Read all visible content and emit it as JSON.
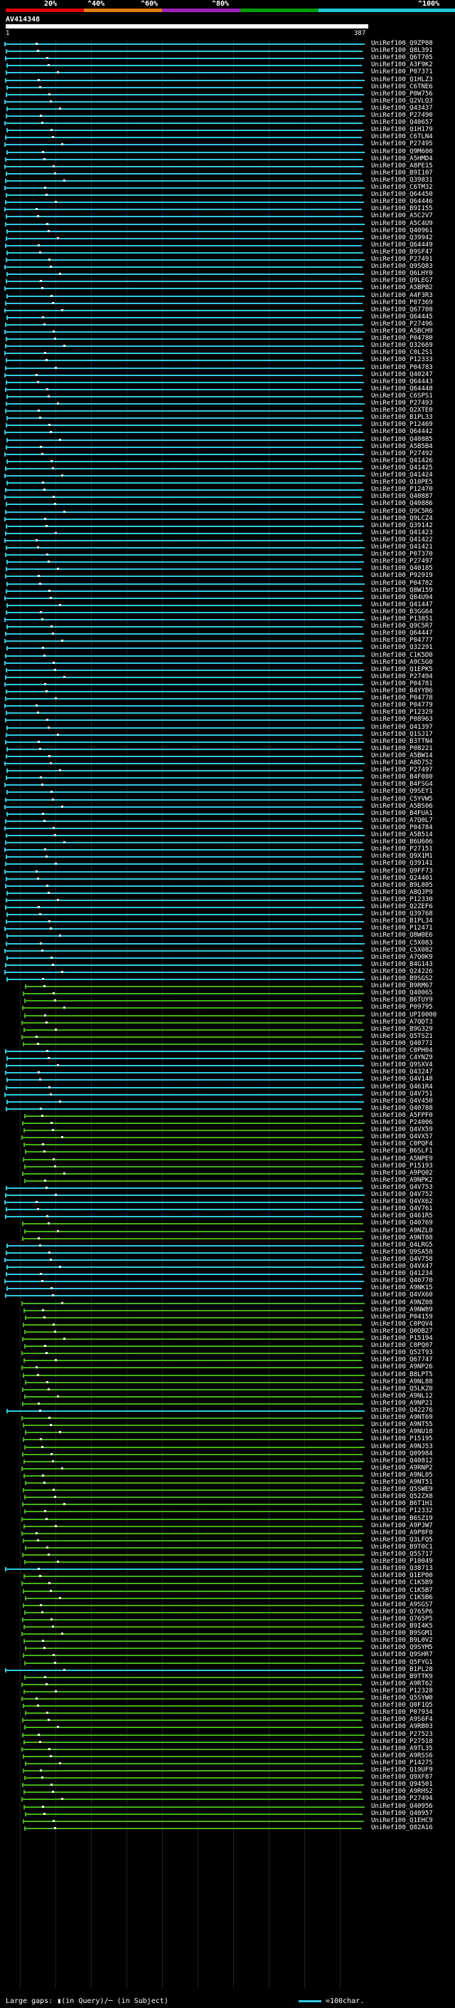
{
  "query": {
    "name": "AV414348",
    "start": "1",
    "end": "387"
  },
  "scale": {
    "ticks": [
      "20%",
      "^40%",
      "^60%",
      "^80%",
      "^100%"
    ],
    "colors": [
      "#e00000",
      "#e07a10",
      "#a020c0",
      "#00a000",
      "#20c8d8"
    ]
  },
  "legend": {
    "gaps_text": "Large gaps: ▮(in Query)/─ (in Subject)",
    "scale_text": "=100char."
  },
  "colors": {
    "cyan": "#32c8e0",
    "green": "#46b018",
    "white": "#ffffff"
  },
  "hits": [
    {
      "id": "UniRef100_Q9ZP08",
      "c": "cyan"
    },
    {
      "id": "UniRef100_Q8L391",
      "c": "cyan"
    },
    {
      "id": "UniRef100_Q6T705",
      "c": "cyan"
    },
    {
      "id": "UniRef100_A3F9K2",
      "c": "cyan"
    },
    {
      "id": "UniRef100_P07371",
      "c": "cyan"
    },
    {
      "id": "UniRef100_Q1HLZ3",
      "c": "cyan"
    },
    {
      "id": "UniRef100_C6TNE6",
      "c": "cyan"
    },
    {
      "id": "UniRef100_P0W756",
      "c": "cyan"
    },
    {
      "id": "UniRef100_Q2VLQ3",
      "c": "cyan"
    },
    {
      "id": "UniRef100_Q43437",
      "c": "cyan"
    },
    {
      "id": "UniRef100_P27490",
      "c": "cyan"
    },
    {
      "id": "UniRef100_Q40657",
      "c": "cyan"
    },
    {
      "id": "UniRef100_Q1H179",
      "c": "cyan"
    },
    {
      "id": "UniRef100_C6TLN4",
      "c": "cyan"
    },
    {
      "id": "UniRef100_P27495",
      "c": "cyan"
    },
    {
      "id": "UniRef100_Q9M600",
      "c": "cyan"
    },
    {
      "id": "UniRef100_A5HMD4",
      "c": "cyan"
    },
    {
      "id": "UniRef100_A8PE15",
      "c": "cyan"
    },
    {
      "id": "UniRef100_B9I107",
      "c": "cyan"
    },
    {
      "id": "UniRef100_Q39831",
      "c": "cyan"
    },
    {
      "id": "UniRef100_C6TM32",
      "c": "cyan"
    },
    {
      "id": "UniRef100_Q64450",
      "c": "cyan"
    },
    {
      "id": "UniRef100_Q64446",
      "c": "cyan"
    },
    {
      "id": "UniRef100_B9I155",
      "c": "cyan"
    },
    {
      "id": "UniRef100_A5C2V7",
      "c": "cyan"
    },
    {
      "id": "UniRef100_A5C4U9",
      "c": "cyan"
    },
    {
      "id": "UniRef100_Q40961",
      "c": "cyan"
    },
    {
      "id": "UniRef100_Q39942",
      "c": "cyan"
    },
    {
      "id": "UniRef100_Q64449",
      "c": "cyan"
    },
    {
      "id": "UniRef100_B9SF47",
      "c": "cyan"
    },
    {
      "id": "UniRef100_P27491",
      "c": "cyan"
    },
    {
      "id": "UniRef100_Q9SQ83",
      "c": "cyan"
    },
    {
      "id": "UniRef100_Q6LHY0",
      "c": "cyan"
    },
    {
      "id": "UniRef100_Q9LEG7",
      "c": "cyan"
    },
    {
      "id": "UniRef100_A5BPB2",
      "c": "cyan"
    },
    {
      "id": "UniRef100_A4F3R3",
      "c": "cyan"
    },
    {
      "id": "UniRef100_P07369",
      "c": "cyan"
    },
    {
      "id": "UniRef100_Q67708",
      "c": "cyan"
    },
    {
      "id": "UniRef100_Q64445",
      "c": "cyan"
    },
    {
      "id": "UniRef100_P27496",
      "c": "cyan"
    },
    {
      "id": "UniRef100_A5BCH9",
      "c": "cyan"
    },
    {
      "id": "UniRef100_P04780",
      "c": "cyan"
    },
    {
      "id": "UniRef100_Q32669",
      "c": "cyan"
    },
    {
      "id": "UniRef100_C0L2S1",
      "c": "cyan"
    },
    {
      "id": "UniRef100_P12333",
      "c": "cyan"
    },
    {
      "id": "UniRef100_P04783",
      "c": "cyan"
    },
    {
      "id": "UniRef100_Q40247",
      "c": "cyan"
    },
    {
      "id": "UniRef100_Q64443",
      "c": "cyan"
    },
    {
      "id": "UniRef100_Q64448",
      "c": "cyan"
    },
    {
      "id": "UniRef100_C6SPS1",
      "c": "cyan"
    },
    {
      "id": "UniRef100_P27493",
      "c": "cyan"
    },
    {
      "id": "UniRef100_Q2XTE0",
      "c": "cyan"
    },
    {
      "id": "UniRef100_B1PL33",
      "c": "cyan"
    },
    {
      "id": "UniRef100_P12469",
      "c": "cyan"
    },
    {
      "id": "UniRef100_Q64442",
      "c": "cyan"
    },
    {
      "id": "UniRef100_Q40885",
      "c": "cyan"
    },
    {
      "id": "UniRef100_A5B5B4",
      "c": "cyan"
    },
    {
      "id": "UniRef100_P27492",
      "c": "cyan"
    },
    {
      "id": "UniRef100_Q41426",
      "c": "cyan"
    },
    {
      "id": "UniRef100_Q41425",
      "c": "cyan"
    },
    {
      "id": "UniRef100_Q41424",
      "c": "cyan"
    },
    {
      "id": "UniRef100_Q10PE5",
      "c": "cyan"
    },
    {
      "id": "UniRef100_P12470",
      "c": "cyan"
    },
    {
      "id": "UniRef100_Q40887",
      "c": "cyan"
    },
    {
      "id": "UniRef100_Q40886",
      "c": "cyan"
    },
    {
      "id": "UniRef100_Q9C5R6",
      "c": "cyan"
    },
    {
      "id": "UniRef100_Q9LCZ4",
      "c": "cyan"
    },
    {
      "id": "UniRef100_Q39142",
      "c": "cyan"
    },
    {
      "id": "UniRef100_Q41423",
      "c": "cyan"
    },
    {
      "id": "UniRef100_Q41422",
      "c": "cyan"
    },
    {
      "id": "UniRef100_Q41421",
      "c": "cyan"
    },
    {
      "id": "UniRef100_P07370",
      "c": "cyan"
    },
    {
      "id": "UniRef100_P27497",
      "c": "cyan"
    },
    {
      "id": "UniRef100_Q40185",
      "c": "cyan"
    },
    {
      "id": "UniRef100_P92919",
      "c": "cyan"
    },
    {
      "id": "UniRef100_P04782",
      "c": "cyan"
    },
    {
      "id": "UniRef100_Q8W159",
      "c": "cyan"
    },
    {
      "id": "UniRef100_Q84U94",
      "c": "cyan"
    },
    {
      "id": "UniRef100_Q41447",
      "c": "cyan"
    },
    {
      "id": "UniRef100_B3GG64",
      "c": "cyan"
    },
    {
      "id": "UniRef100_P13851",
      "c": "cyan"
    },
    {
      "id": "UniRef100_Q9C5R7",
      "c": "cyan"
    },
    {
      "id": "UniRef100_Q64447",
      "c": "cyan"
    },
    {
      "id": "UniRef100_P04777",
      "c": "cyan"
    },
    {
      "id": "UniRef100_Q32291",
      "c": "cyan"
    },
    {
      "id": "UniRef100_C1K5D0",
      "c": "cyan"
    },
    {
      "id": "UniRef100_A9CSG0",
      "c": "cyan"
    },
    {
      "id": "UniRef100_Q1EPK5",
      "c": "cyan"
    },
    {
      "id": "UniRef100_P27494",
      "c": "cyan"
    },
    {
      "id": "UniRef100_P04781",
      "c": "cyan"
    },
    {
      "id": "UniRef100_B4YYB6",
      "c": "cyan"
    },
    {
      "id": "UniRef100_P04778",
      "c": "cyan"
    },
    {
      "id": "UniRef100_P04779",
      "c": "cyan"
    },
    {
      "id": "UniRef100_P12329",
      "c": "cyan"
    },
    {
      "id": "UniRef100_P08963",
      "c": "cyan"
    },
    {
      "id": "UniRef100_Q41397",
      "c": "cyan"
    },
    {
      "id": "UniRef100_Q1SJ17",
      "c": "cyan"
    },
    {
      "id": "UniRef100_B3TTN4",
      "c": "cyan"
    },
    {
      "id": "UniRef100_P08221",
      "c": "cyan"
    },
    {
      "id": "UniRef100_A5BW14",
      "c": "cyan"
    },
    {
      "id": "UniRef100_A8D752",
      "c": "cyan"
    },
    {
      "id": "UniRef100_P27497",
      "c": "cyan"
    },
    {
      "id": "UniRef100_B4F080",
      "c": "cyan"
    },
    {
      "id": "UniRef100_B4FSG4",
      "c": "cyan"
    },
    {
      "id": "UniRef100_Q9SEY1",
      "c": "cyan"
    },
    {
      "id": "UniRef100_C5YVW5",
      "c": "cyan"
    },
    {
      "id": "UniRef100_A5BS06",
      "c": "cyan"
    },
    {
      "id": "UniRef100_B4FUA1",
      "c": "cyan"
    },
    {
      "id": "UniRef100_A7Q0L7",
      "c": "cyan"
    },
    {
      "id": "UniRef100_P04784",
      "c": "cyan"
    },
    {
      "id": "UniRef100_A5B514",
      "c": "cyan"
    },
    {
      "id": "UniRef100_B6U606",
      "c": "cyan"
    },
    {
      "id": "UniRef100_P27151",
      "c": "cyan"
    },
    {
      "id": "UniRef100_Q9X1M1",
      "c": "cyan"
    },
    {
      "id": "UniRef100_Q39141",
      "c": "cyan"
    },
    {
      "id": "UniRef100_Q9FF73",
      "c": "cyan"
    },
    {
      "id": "UniRef100_Q24401",
      "c": "cyan"
    },
    {
      "id": "UniRef100_B9L805",
      "c": "cyan"
    },
    {
      "id": "UniRef100_A8QJP9",
      "c": "cyan"
    },
    {
      "id": "UniRef100_P12330",
      "c": "cyan"
    },
    {
      "id": "UniRef100_Q2ZEF6",
      "c": "cyan"
    },
    {
      "id": "UniRef100_Q39768",
      "c": "cyan"
    },
    {
      "id": "UniRef100_B1PL34",
      "c": "cyan"
    },
    {
      "id": "UniRef100_P12471",
      "c": "cyan"
    },
    {
      "id": "UniRef100_Q8W0E6",
      "c": "cyan"
    },
    {
      "id": "UniRef100_C5X083",
      "c": "cyan"
    },
    {
      "id": "UniRef100_C5X082",
      "c": "cyan"
    },
    {
      "id": "UniRef100_A7Q0K9",
      "c": "cyan"
    },
    {
      "id": "UniRef100_B4G143",
      "c": "cyan"
    },
    {
      "id": "UniRef100_Q24226",
      "c": "cyan"
    },
    {
      "id": "UniRef100_B9SGS2",
      "c": "cyan"
    },
    {
      "id": "UniRef100_B9RM67",
      "c": "green"
    },
    {
      "id": "UniRef100_Q40065",
      "c": "green"
    },
    {
      "id": "UniRef100_B6TUY9",
      "c": "green"
    },
    {
      "id": "UniRef100_P09795",
      "c": "green"
    },
    {
      "id": "UniRef100_UPI0000",
      "c": "green"
    },
    {
      "id": "UniRef100_A7QDT3",
      "c": "green"
    },
    {
      "id": "UniRef100_B9G329",
      "c": "green"
    },
    {
      "id": "UniRef100_Q5TSZ1",
      "c": "green"
    },
    {
      "id": "UniRef100_Q40771",
      "c": "green"
    },
    {
      "id": "UniRef100_C0PH04",
      "c": "cyan"
    },
    {
      "id": "UniRef100_C4YNZ9",
      "c": "cyan"
    },
    {
      "id": "UniRef100_Q9SXV4",
      "c": "cyan"
    },
    {
      "id": "UniRef100_Q43247",
      "c": "cyan"
    },
    {
      "id": "UniRef100_Q4V148",
      "c": "cyan"
    },
    {
      "id": "UniRef100_Q461R4",
      "c": "cyan"
    },
    {
      "id": "UniRef100_Q4V751",
      "c": "cyan"
    },
    {
      "id": "UniRef100_Q4V450",
      "c": "cyan"
    },
    {
      "id": "UniRef100_Q40788",
      "c": "cyan"
    },
    {
      "id": "UniRef100_A5FPF0",
      "c": "green"
    },
    {
      "id": "UniRef100_P24006",
      "c": "green"
    },
    {
      "id": "UniRef100_Q4VX59",
      "c": "green"
    },
    {
      "id": "UniRef100_Q4VX57",
      "c": "green"
    },
    {
      "id": "UniRef100_C0PQF4",
      "c": "green"
    },
    {
      "id": "UniRef100_B6SLF1",
      "c": "green"
    },
    {
      "id": "UniRef100_A5NPE9",
      "c": "green"
    },
    {
      "id": "UniRef100_P15193",
      "c": "green"
    },
    {
      "id": "UniRef100_A9PQ02",
      "c": "green"
    },
    {
      "id": "UniRef100_A9NPK2",
      "c": "green"
    },
    {
      "id": "UniRef100_Q4V753",
      "c": "cyan"
    },
    {
      "id": "UniRef100_Q4V752",
      "c": "cyan"
    },
    {
      "id": "UniRef100_Q4VX62",
      "c": "cyan"
    },
    {
      "id": "UniRef100_Q4V761",
      "c": "cyan"
    },
    {
      "id": "UniRef100_Q461R5",
      "c": "cyan"
    },
    {
      "id": "UniRef100_Q40769",
      "c": "green"
    },
    {
      "id": "UniRef100_A9NZL0",
      "c": "green"
    },
    {
      "id": "UniRef100_A9NT88",
      "c": "green"
    },
    {
      "id": "UniRef100_Q4LRG5",
      "c": "cyan"
    },
    {
      "id": "UniRef100_Q9SA58",
      "c": "cyan"
    },
    {
      "id": "UniRef100_Q4V758",
      "c": "cyan"
    },
    {
      "id": "UniRef100_Q4VX47",
      "c": "cyan"
    },
    {
      "id": "UniRef100_Q41234",
      "c": "cyan"
    },
    {
      "id": "UniRef100_Q40770",
      "c": "cyan"
    },
    {
      "id": "UniRef100_A9NK15",
      "c": "cyan"
    },
    {
      "id": "UniRef100_Q4VX60",
      "c": "cyan"
    },
    {
      "id": "UniRef100_A9NZ08",
      "c": "green"
    },
    {
      "id": "UniRef100_A9NW89",
      "c": "green"
    },
    {
      "id": "UniRef100_P04159",
      "c": "green"
    },
    {
      "id": "UniRef100_C0PQV4",
      "c": "green"
    },
    {
      "id": "UniRef100_Q0DB27",
      "c": "green"
    },
    {
      "id": "UniRef100_P15194",
      "c": "green"
    },
    {
      "id": "UniRef100_C0PQ07",
      "c": "green"
    },
    {
      "id": "UniRef100_Q52T93",
      "c": "green"
    },
    {
      "id": "UniRef100_Q67747",
      "c": "green"
    },
    {
      "id": "UniRef100_A9NP26",
      "c": "green"
    },
    {
      "id": "UniRef100_B8LPT5",
      "c": "green"
    },
    {
      "id": "UniRef100_A9NL88",
      "c": "green"
    },
    {
      "id": "UniRef100_Q5LKZ0",
      "c": "green"
    },
    {
      "id": "UniRef100_A9NL12",
      "c": "green"
    },
    {
      "id": "UniRef100_A9NP21",
      "c": "green"
    },
    {
      "id": "UniRef100_Q42276",
      "c": "cyan"
    },
    {
      "id": "UniRef100_A9NT69",
      "c": "green"
    },
    {
      "id": "UniRef100_A9NT55",
      "c": "green"
    },
    {
      "id": "UniRef100_A9NU18",
      "c": "green"
    },
    {
      "id": "UniRef100_P15195",
      "c": "green"
    },
    {
      "id": "UniRef100_A9NJ53",
      "c": "green"
    },
    {
      "id": "UniRef100_Q09984",
      "c": "green"
    },
    {
      "id": "UniRef100_Q40812",
      "c": "green"
    },
    {
      "id": "UniRef100_A9RNP2",
      "c": "green"
    },
    {
      "id": "UniRef100_A9NL05",
      "c": "green"
    },
    {
      "id": "UniRef100_A9NT51",
      "c": "green"
    },
    {
      "id": "UniRef100_Q5SWE9",
      "c": "green"
    },
    {
      "id": "UniRef100_Q52ZX8",
      "c": "green"
    },
    {
      "id": "UniRef100_B6T1H1",
      "c": "green"
    },
    {
      "id": "UniRef100_P12332",
      "c": "green"
    },
    {
      "id": "UniRef100_B6SZ19",
      "c": "green"
    },
    {
      "id": "UniRef100_A9PJW7",
      "c": "green"
    },
    {
      "id": "UniRef100_A9P8F0",
      "c": "green"
    },
    {
      "id": "UniRef100_Q3LFQ5",
      "c": "green"
    },
    {
      "id": "UniRef100_B9T0C1",
      "c": "green"
    },
    {
      "id": "UniRef100_Q5S717",
      "c": "green"
    },
    {
      "id": "UniRef100_P10049",
      "c": "green"
    },
    {
      "id": "UniRef100_Q38713",
      "c": "cyan"
    },
    {
      "id": "UniRef100_Q1EP00",
      "c": "green"
    },
    {
      "id": "UniRef100_C1K5B9",
      "c": "green"
    },
    {
      "id": "UniRef100_C1K5B7",
      "c": "green"
    },
    {
      "id": "UniRef100_C1K5B6",
      "c": "green"
    },
    {
      "id": "UniRef100_A9SGS7",
      "c": "green"
    },
    {
      "id": "UniRef100_Q765P6",
      "c": "green"
    },
    {
      "id": "UniRef100_Q765P5",
      "c": "green"
    },
    {
      "id": "UniRef100_B9I4K5",
      "c": "green"
    },
    {
      "id": "UniRef100_B9SGM1",
      "c": "green"
    },
    {
      "id": "UniRef100_B9L0V2",
      "c": "green"
    },
    {
      "id": "UniRef100_Q9SYM5",
      "c": "green"
    },
    {
      "id": "UniRef100_Q9SHR7",
      "c": "green"
    },
    {
      "id": "UniRef100_Q5FYG1",
      "c": "green"
    },
    {
      "id": "UniRef100_B1PL28",
      "c": "cyan"
    },
    {
      "id": "UniRef100_B9TTK9",
      "c": "green"
    },
    {
      "id": "UniRef100_A9RT62",
      "c": "green"
    },
    {
      "id": "UniRef100_P12328",
      "c": "green"
    },
    {
      "id": "UniRef100_Q5SYW0",
      "c": "green"
    },
    {
      "id": "UniRef100_Q0F1Q5",
      "c": "green"
    },
    {
      "id": "UniRef100_P07934",
      "c": "green"
    },
    {
      "id": "UniRef100_A9S6F4",
      "c": "green"
    },
    {
      "id": "UniRef100_A9RB03",
      "c": "green"
    },
    {
      "id": "UniRef100_P27523",
      "c": "green"
    },
    {
      "id": "UniRef100_P27518",
      "c": "green"
    },
    {
      "id": "UniRef100_A9TL35",
      "c": "green"
    },
    {
      "id": "UniRef100_A9RSS6",
      "c": "green"
    },
    {
      "id": "UniRef100_P14275",
      "c": "green"
    },
    {
      "id": "UniRef100_Q19UF9",
      "c": "green"
    },
    {
      "id": "UniRef100_Q9XF87",
      "c": "green"
    },
    {
      "id": "UniRef100_Q94501",
      "c": "green"
    },
    {
      "id": "UniRef100_A9RHS2",
      "c": "green"
    },
    {
      "id": "UniRef100_P27494",
      "c": "green"
    },
    {
      "id": "UniRef100_Q40956",
      "c": "green"
    },
    {
      "id": "UniRef100_Q40957",
      "c": "green"
    },
    {
      "id": "UniRef100_Q1EHC9",
      "c": "green"
    },
    {
      "id": "UniRef100_Q82A16",
      "c": "green"
    }
  ]
}
